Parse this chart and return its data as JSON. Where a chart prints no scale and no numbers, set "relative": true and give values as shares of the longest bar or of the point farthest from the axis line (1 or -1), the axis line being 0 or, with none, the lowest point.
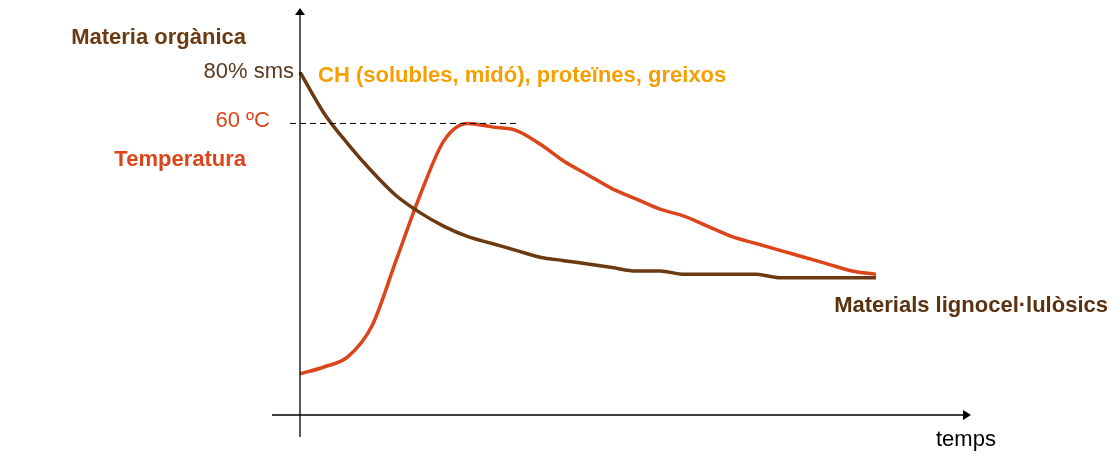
{
  "chart_data": {
    "type": "line",
    "relative": true,
    "xlabel": "temps",
    "categories": [
      null,
      null,
      null,
      null,
      null,
      null,
      null,
      null,
      null,
      null,
      null,
      null,
      null,
      null,
      null,
      null,
      null,
      null,
      null,
      null,
      null,
      null,
      null,
      null,
      null
    ],
    "series": [
      {
        "name": "Materia orgànica",
        "color": "#6b3a12",
        "values": [
          1.0,
          0.88,
          0.79,
          0.71,
          0.64,
          0.59,
          0.55,
          0.52,
          0.5,
          0.48,
          0.46,
          0.45,
          0.44,
          0.43,
          0.42,
          0.42,
          0.41,
          0.41,
          0.41,
          0.41,
          0.4,
          0.4,
          0.4,
          0.4,
          0.4
        ]
      },
      {
        "name": "Temperatura",
        "color": "#dc4419",
        "values": [
          0.12,
          0.14,
          0.17,
          0.26,
          0.45,
          0.64,
          0.8,
          0.85,
          0.84,
          0.83,
          0.79,
          0.74,
          0.7,
          0.66,
          0.63,
          0.6,
          0.58,
          0.55,
          0.52,
          0.5,
          0.48,
          0.46,
          0.44,
          0.42,
          0.41
        ]
      }
    ],
    "ref_lines": [
      {
        "axis": "y",
        "value": 0.85,
        "label": "60 ºC",
        "color": "#000000",
        "line_style": "dashed"
      }
    ],
    "annotations": [
      "80% sms",
      "CH (solubles, midó), proteïnes, greixos",
      "Materials lignocel·lulòsics"
    ],
    "grid": false,
    "legend": false,
    "marker": "none",
    "line_style": "solid"
  }
}
